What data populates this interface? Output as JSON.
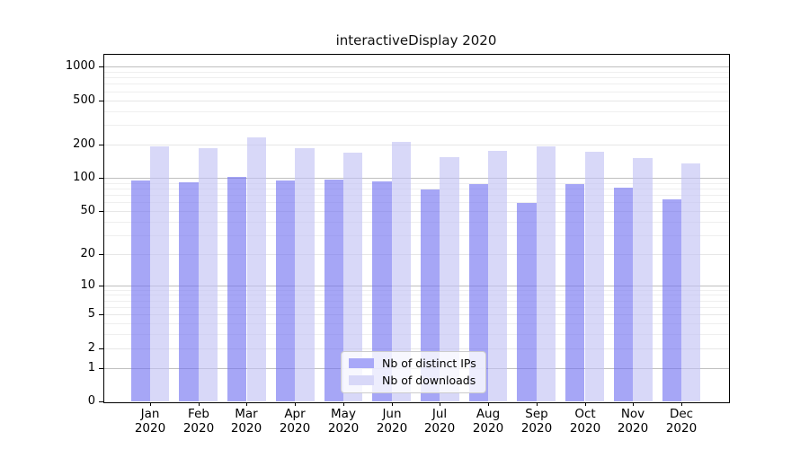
{
  "title": "interactiveDisplay 2020",
  "chart_data": {
    "type": "bar",
    "title": "interactiveDisplay 2020",
    "categories": [
      "Jan",
      "Feb",
      "Mar",
      "Apr",
      "May",
      "Jun",
      "Jul",
      "Aug",
      "Sep",
      "Oct",
      "Nov",
      "Dec"
    ],
    "category_year": "2020",
    "series": [
      {
        "name": "Nb of distinct IPs",
        "color": "#a8a8f8",
        "fill": "rgba(112,112,240,0.62)",
        "values": [
          94,
          91,
          102,
          94,
          97,
          93,
          79,
          87,
          59,
          87,
          82,
          64
        ]
      },
      {
        "name": "Nb of downloads",
        "color": "#d8d8f8",
        "fill": "rgba(192,192,244,0.62)",
        "values": [
          192,
          184,
          230,
          186,
          170,
          212,
          154,
          175,
          193,
          173,
          150,
          135
        ]
      }
    ],
    "xlabel": "",
    "ylabel": "",
    "yscale": "log1p",
    "ylim": [
      0,
      1300
    ],
    "y_ticks": [
      0,
      1,
      2,
      5,
      10,
      20,
      50,
      100,
      200,
      500,
      1000
    ],
    "y_decade_lines": [
      1,
      10,
      100,
      1000
    ],
    "y_minor_lines": [
      3,
      4,
      6,
      7,
      8,
      9,
      30,
      40,
      60,
      70,
      80,
      90,
      300,
      400,
      600,
      700,
      800,
      900
    ],
    "grid": true,
    "legend_position": "lower-center"
  }
}
